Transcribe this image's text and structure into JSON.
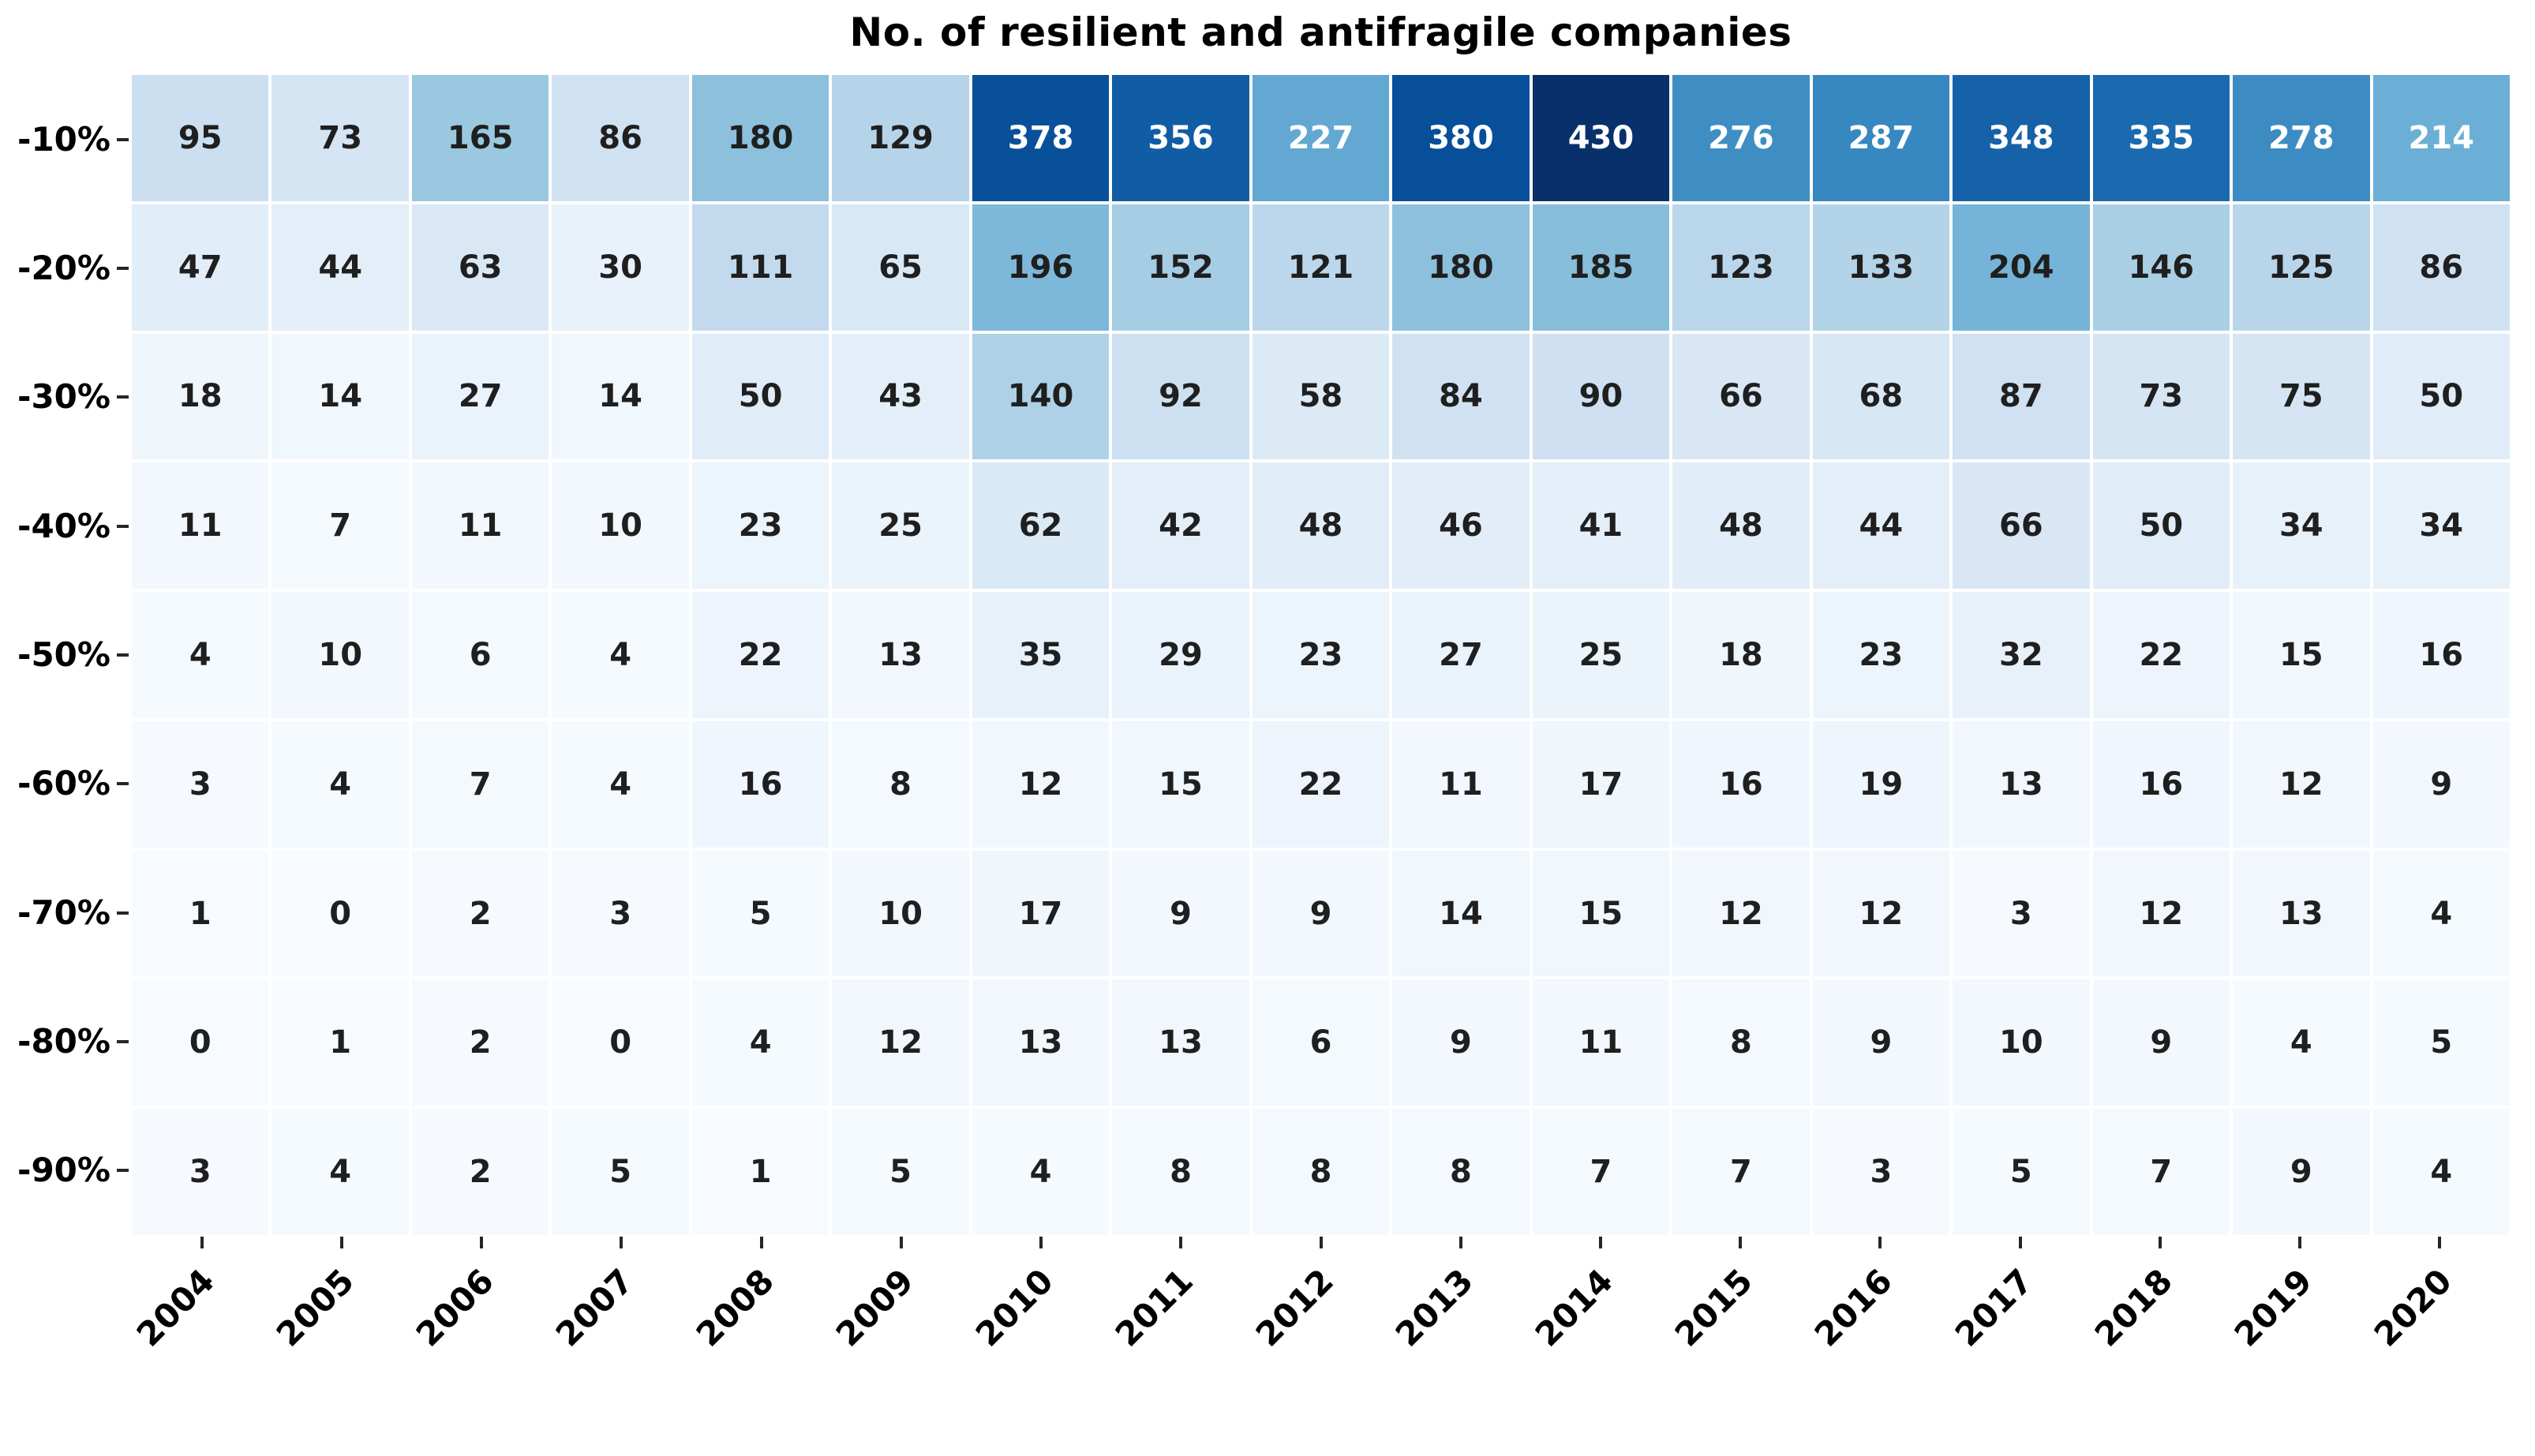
{
  "chart_data": {
    "type": "heatmap",
    "title": "No. of resilient and antifragile companies",
    "columns": [
      "2004",
      "2005",
      "2006",
      "2007",
      "2008",
      "2009",
      "2010",
      "2011",
      "2012",
      "2013",
      "2014",
      "2015",
      "2016",
      "2017",
      "2018",
      "2019",
      "2020"
    ],
    "rows": [
      "-10%",
      "-20%",
      "-30%",
      "-40%",
      "-50%",
      "-60%",
      "-70%",
      "-80%",
      "-90%"
    ],
    "values": [
      [
        95,
        73,
        165,
        86,
        180,
        129,
        378,
        356,
        227,
        380,
        430,
        276,
        287,
        348,
        335,
        278,
        214
      ],
      [
        47,
        44,
        63,
        30,
        111,
        65,
        196,
        152,
        121,
        180,
        185,
        123,
        133,
        204,
        146,
        125,
        86
      ],
      [
        18,
        14,
        27,
        14,
        50,
        43,
        140,
        92,
        58,
        84,
        90,
        66,
        68,
        87,
        73,
        75,
        50
      ],
      [
        11,
        7,
        11,
        10,
        23,
        25,
        62,
        42,
        48,
        46,
        41,
        48,
        44,
        66,
        50,
        34,
        34
      ],
      [
        4,
        10,
        6,
        4,
        22,
        13,
        35,
        29,
        23,
        27,
        25,
        18,
        23,
        32,
        22,
        15,
        16
      ],
      [
        3,
        4,
        7,
        4,
        16,
        8,
        12,
        15,
        22,
        11,
        17,
        16,
        19,
        13,
        16,
        12,
        9
      ],
      [
        1,
        0,
        2,
        3,
        5,
        10,
        17,
        9,
        9,
        14,
        15,
        12,
        12,
        3,
        12,
        13,
        4
      ],
      [
        0,
        1,
        2,
        0,
        4,
        12,
        13,
        13,
        6,
        9,
        11,
        8,
        9,
        10,
        9,
        4,
        5
      ],
      [
        3,
        4,
        2,
        5,
        1,
        5,
        4,
        8,
        8,
        8,
        7,
        7,
        3,
        5,
        7,
        9,
        4
      ]
    ],
    "vmin": 0,
    "vmax": 430,
    "colormap": "Blues",
    "colormap_stops": [
      {
        "t": 0.0,
        "c": "#f7fbff"
      },
      {
        "t": 0.125,
        "c": "#deebf7"
      },
      {
        "t": 0.25,
        "c": "#c6dbef"
      },
      {
        "t": 0.375,
        "c": "#9ecae1"
      },
      {
        "t": 0.5,
        "c": "#6baed6"
      },
      {
        "t": 0.625,
        "c": "#4292c6"
      },
      {
        "t": 0.75,
        "c": "#2171b5"
      },
      {
        "t": 0.875,
        "c": "#08519c"
      },
      {
        "t": 1.0,
        "c": "#08306b"
      }
    ],
    "annotation_color_dark": "#1f1f1f",
    "annotation_color_light": "#ffffff",
    "background": "#ffffff",
    "tick_color": "#262626",
    "grid_gap_color": "#ffffff",
    "legend": "none",
    "gridlines": "off"
  }
}
